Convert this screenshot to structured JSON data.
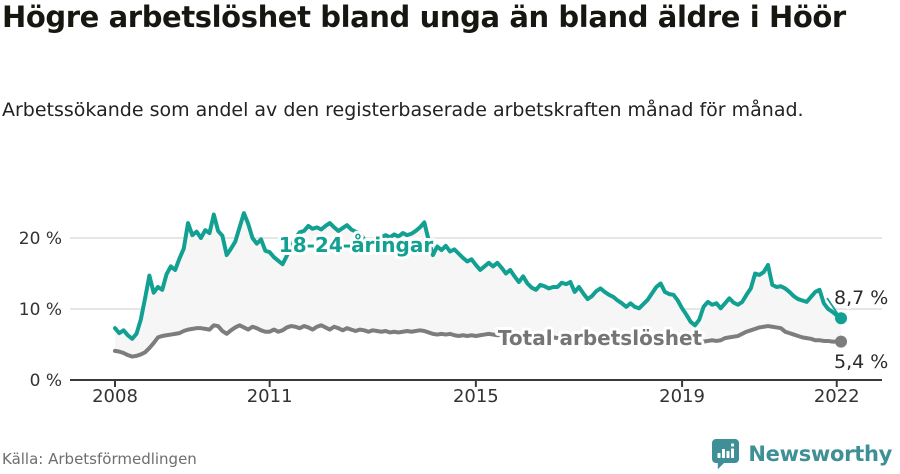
{
  "header": {
    "title": "Högre arbetslöshet bland unga än bland äldre i Höör",
    "subtitle": "Arbetssökande som andel av den registerbaserade arbetskraften månad för månad."
  },
  "footer": {
    "source": "Källa: Arbetsförmedlingen",
    "brand": "Newsworthy",
    "brand_icon": "speech-bubble-bar-chart-icon"
  },
  "colors": {
    "young_line": "#12a092",
    "total_line": "#7d7d7d",
    "total_label": "#757575",
    "band_fill": "#f6f6f6",
    "gridline": "#dddddd",
    "axis_line": "#3a3a3a",
    "tick_text": "#333333",
    "value_text": "#2b2b2b",
    "brand_teal": "#3e9096"
  },
  "chart_data": {
    "type": "line",
    "title": "Högre arbetslöshet bland unga än bland äldre i Höör",
    "subtitle": "Arbetssökande som andel av den registerbaserade arbetskraften månad för månad.",
    "x_unit": "month",
    "x_start": "2008-01",
    "x_end": "2022-02",
    "x_tick_labels": [
      "2008",
      "2011",
      "2015",
      "2019",
      "2022"
    ],
    "x_tick_month_index": [
      0,
      36,
      84,
      132,
      168
    ],
    "y_tick_values": [
      0,
      10,
      20
    ],
    "y_tick_labels": [
      "0 %",
      "10 %",
      "20 %"
    ],
    "ylim": [
      0,
      25
    ],
    "grid": "horizontal-only",
    "legend_position": "inline-on-lines",
    "fill_between_series": true,
    "series": [
      {
        "name": "18-24-åringar",
        "end_label": "8,7 %",
        "end_value": 8.7,
        "values": [
          7.3,
          6.6,
          7.0,
          6.3,
          5.8,
          6.5,
          8.5,
          11.5,
          14.7,
          12.3,
          13.1,
          12.7,
          14.9,
          16.0,
          15.5,
          17.1,
          18.5,
          22.1,
          20.4,
          20.9,
          20.0,
          21.1,
          20.7,
          23.3,
          21.0,
          20.3,
          17.6,
          18.5,
          19.5,
          21.5,
          23.5,
          22.0,
          20.0,
          19.2,
          19.8,
          18.2,
          18.0,
          17.3,
          16.8,
          16.3,
          17.5,
          19.0,
          20.0,
          20.8,
          21.0,
          21.7,
          21.3,
          21.5,
          21.2,
          21.7,
          22.1,
          21.5,
          21.0,
          21.4,
          21.8,
          21.2,
          20.9,
          20.7,
          19.8,
          19.2,
          19.5,
          19.8,
          20.1,
          20.4,
          20.1,
          20.5,
          20.2,
          20.7,
          20.4,
          20.6,
          21.0,
          21.5,
          22.2,
          19.7,
          17.6,
          18.8,
          18.3,
          18.9,
          18.1,
          18.4,
          17.8,
          17.2,
          16.7,
          17.0,
          16.2,
          15.5,
          16.0,
          16.5,
          16.0,
          16.5,
          15.8,
          15.0,
          15.5,
          14.6,
          13.8,
          14.6,
          13.6,
          13.0,
          12.7,
          13.4,
          13.2,
          12.9,
          13.1,
          13.1,
          13.7,
          13.5,
          13.8,
          12.4,
          13.1,
          12.2,
          11.4,
          11.8,
          12.5,
          12.9,
          12.4,
          12.0,
          11.7,
          11.2,
          10.8,
          10.3,
          10.8,
          10.3,
          10.1,
          10.7,
          11.3,
          12.2,
          13.1,
          13.6,
          12.4,
          12.1,
          12.0,
          11.2,
          10.1,
          9.2,
          8.2,
          7.7,
          8.5,
          10.3,
          11.0,
          10.6,
          10.8,
          10.1,
          10.8,
          11.5,
          10.9,
          10.6,
          11.0,
          12.0,
          12.9,
          15.0,
          14.8,
          15.2,
          16.2,
          13.4,
          13.1,
          13.2,
          12.9,
          12.4,
          11.8,
          11.4,
          11.2,
          11.0,
          11.7,
          12.4,
          12.7,
          10.8,
          10.0,
          9.6,
          9.1,
          8.7
        ]
      },
      {
        "name": "Total arbetslöshet",
        "end_label": "5,4 %",
        "end_value": 5.4,
        "values": [
          4.1,
          4.0,
          3.8,
          3.5,
          3.3,
          3.4,
          3.6,
          3.9,
          4.5,
          5.2,
          6.0,
          6.2,
          6.3,
          6.4,
          6.5,
          6.6,
          6.9,
          7.1,
          7.2,
          7.3,
          7.3,
          7.2,
          7.1,
          7.7,
          7.6,
          6.9,
          6.5,
          7.0,
          7.4,
          7.7,
          7.4,
          7.1,
          7.5,
          7.3,
          7.0,
          6.8,
          6.8,
          7.1,
          6.8,
          7.0,
          7.4,
          7.6,
          7.5,
          7.3,
          7.6,
          7.4,
          7.1,
          7.5,
          7.7,
          7.4,
          7.1,
          7.5,
          7.3,
          7.0,
          7.3,
          7.1,
          6.9,
          7.1,
          7.0,
          6.8,
          7.0,
          6.9,
          6.8,
          6.9,
          6.7,
          6.8,
          6.7,
          6.8,
          6.9,
          6.8,
          6.9,
          7.0,
          6.9,
          6.7,
          6.5,
          6.4,
          6.5,
          6.4,
          6.5,
          6.3,
          6.2,
          6.3,
          6.2,
          6.3,
          6.2,
          6.3,
          6.4,
          6.5,
          6.4,
          6.3,
          6.4,
          6.3,
          6.2,
          6.3,
          6.2,
          6.1,
          6.2,
          6.1,
          6.2,
          6.1,
          6.0,
          6.1,
          6.0,
          5.9,
          6.0,
          5.9,
          5.8,
          5.9,
          5.8,
          5.9,
          5.8,
          5.7,
          5.8,
          5.7,
          5.6,
          5.7,
          5.6,
          5.5,
          5.6,
          5.5,
          5.5,
          5.4,
          5.5,
          5.4,
          5.3,
          5.4,
          5.3,
          5.4,
          5.3,
          5.2,
          5.3,
          5.4,
          5.3,
          5.2,
          5.3,
          5.2,
          5.3,
          5.4,
          5.5,
          5.6,
          5.5,
          5.6,
          5.9,
          6.0,
          6.1,
          6.2,
          6.5,
          6.8,
          7.0,
          7.2,
          7.4,
          7.5,
          7.6,
          7.5,
          7.4,
          7.3,
          6.8,
          6.6,
          6.4,
          6.2,
          6.0,
          5.9,
          5.8,
          5.6,
          5.6,
          5.5,
          5.5,
          5.4,
          5.4,
          5.4
        ]
      }
    ]
  }
}
